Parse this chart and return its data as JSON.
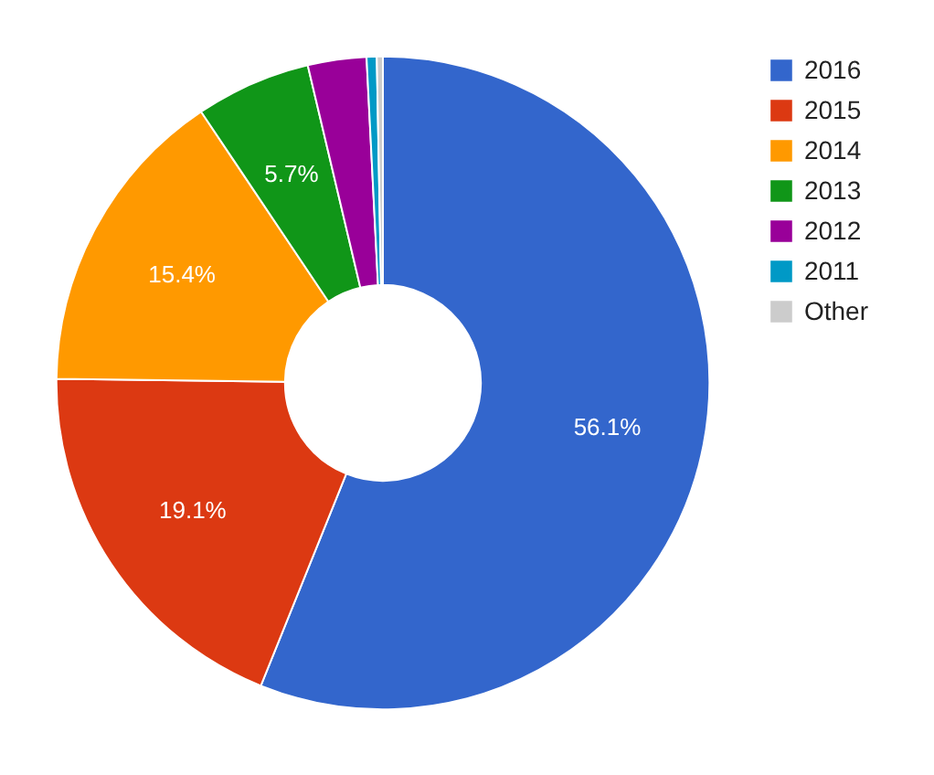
{
  "chart_data": {
    "type": "donut",
    "categories": [
      "2016",
      "2015",
      "2014",
      "2013",
      "2012",
      "2011",
      "Other"
    ],
    "values": [
      56.1,
      19.1,
      15.4,
      5.7,
      2.9,
      0.5,
      0.3
    ],
    "colors": [
      "#3366cc",
      "#dc3912",
      "#ff9900",
      "#109618",
      "#990099",
      "#0099c6",
      "#cccccc"
    ],
    "value_labels": [
      "56.1%",
      "19.1%",
      "15.4%",
      "5.7%",
      null,
      null,
      null
    ],
    "legend": "right"
  }
}
